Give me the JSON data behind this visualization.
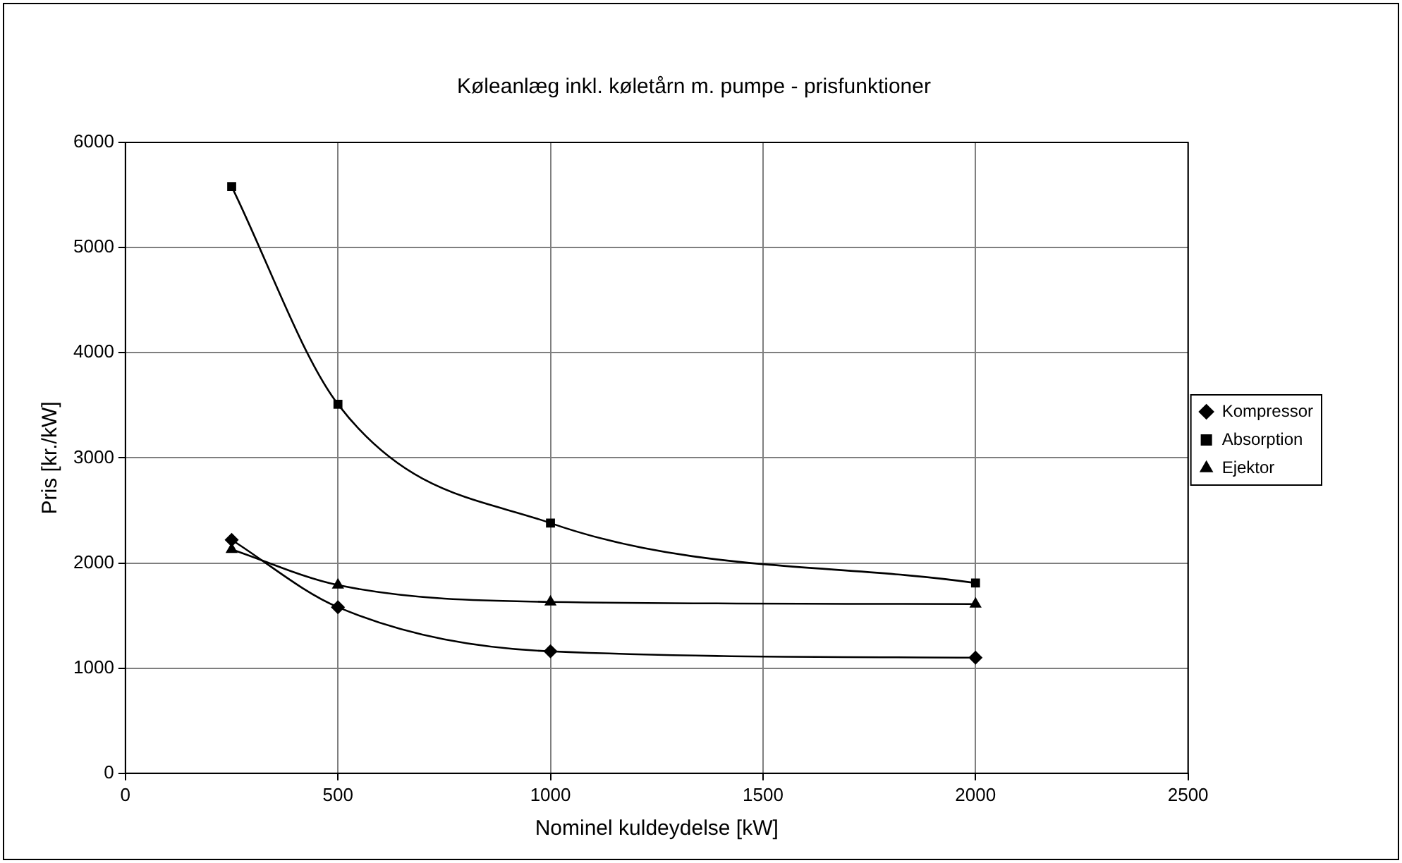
{
  "chart_data": {
    "type": "line",
    "title": "Køleanlæg inkl. køletårn m. pumpe - prisfunktioner",
    "xlabel": "Nominel kuldeydelse [kW]",
    "ylabel": "Pris [kr./kW]",
    "x": [
      250,
      500,
      1000,
      2000
    ],
    "series": [
      {
        "name": "Kompressor",
        "color": "#000000",
        "marker": "diamond",
        "values": [
          2220,
          1580,
          1160,
          1100
        ]
      },
      {
        "name": "Absorption",
        "color": "#000000",
        "marker": "square",
        "values": [
          5580,
          3510,
          2380,
          1810
        ]
      },
      {
        "name": "Ejektor",
        "color": "#000000",
        "marker": "triangle",
        "values": [
          2130,
          1790,
          1630,
          1610
        ]
      }
    ],
    "xlim": [
      0,
      2500
    ],
    "xticks": [
      0,
      500,
      1000,
      1500,
      2000,
      2500
    ],
    "ylim": [
      0,
      6000
    ],
    "yticks": [
      0,
      1000,
      2000,
      3000,
      4000,
      5000,
      6000
    ],
    "grid": true,
    "legend": "right",
    "line_style": "solid"
  }
}
